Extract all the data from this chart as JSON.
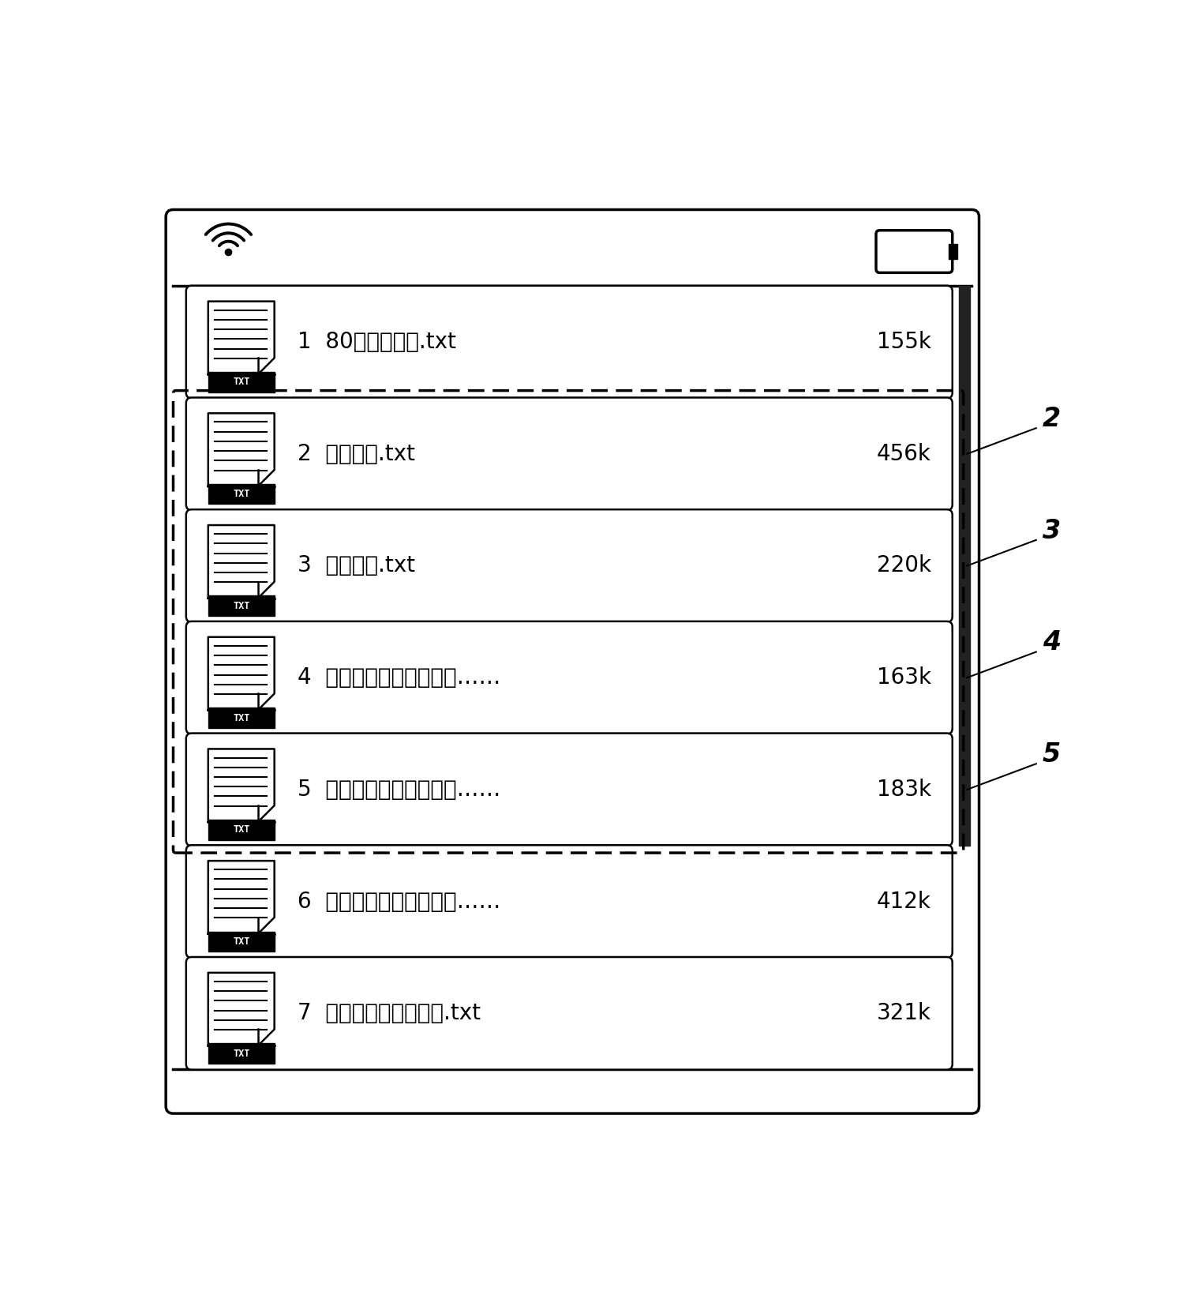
{
  "bg_color": "#ffffff",
  "border_color": "#000000",
  "items": [
    {
      "num": 1,
      "title": "80后惹了谁？.txt",
      "size": "155k",
      "dashed": false
    },
    {
      "num": 2,
      "title": "爱的胜利.txt",
      "size": "456k",
      "dashed": true
    },
    {
      "num": 3,
      "title": "不说再见.txt",
      "size": "220k",
      "dashed": true
    },
    {
      "num": 4,
      "title": "茶与咏啊：经济交往与……",
      "size": "163k",
      "dashed": true
    },
    {
      "num": 5,
      "title": "初中三年，决定孩子的……",
      "size": "183k",
      "dashed": true
    },
    {
      "num": 6,
      "title": "大学生必知的重大发明……",
      "size": "412k",
      "dashed": false
    },
    {
      "num": 7,
      "title": "古今汉语语法的流变.txt",
      "size": "321k",
      "dashed": false
    }
  ],
  "annotations": [
    {
      "label": "2",
      "item_index": 1
    },
    {
      "label": "3",
      "item_index": 2
    },
    {
      "label": "4",
      "item_index": 3
    },
    {
      "label": "5",
      "item_index": 4
    }
  ],
  "scrollbar_color": "#222222",
  "status_bar_height": 0.075,
  "bottom_bar_height": 0.04,
  "device_border_lw": 3,
  "item_border_lw": 1.5,
  "dashed_border_lw": 2.2,
  "annotation_line_color": "#000000"
}
